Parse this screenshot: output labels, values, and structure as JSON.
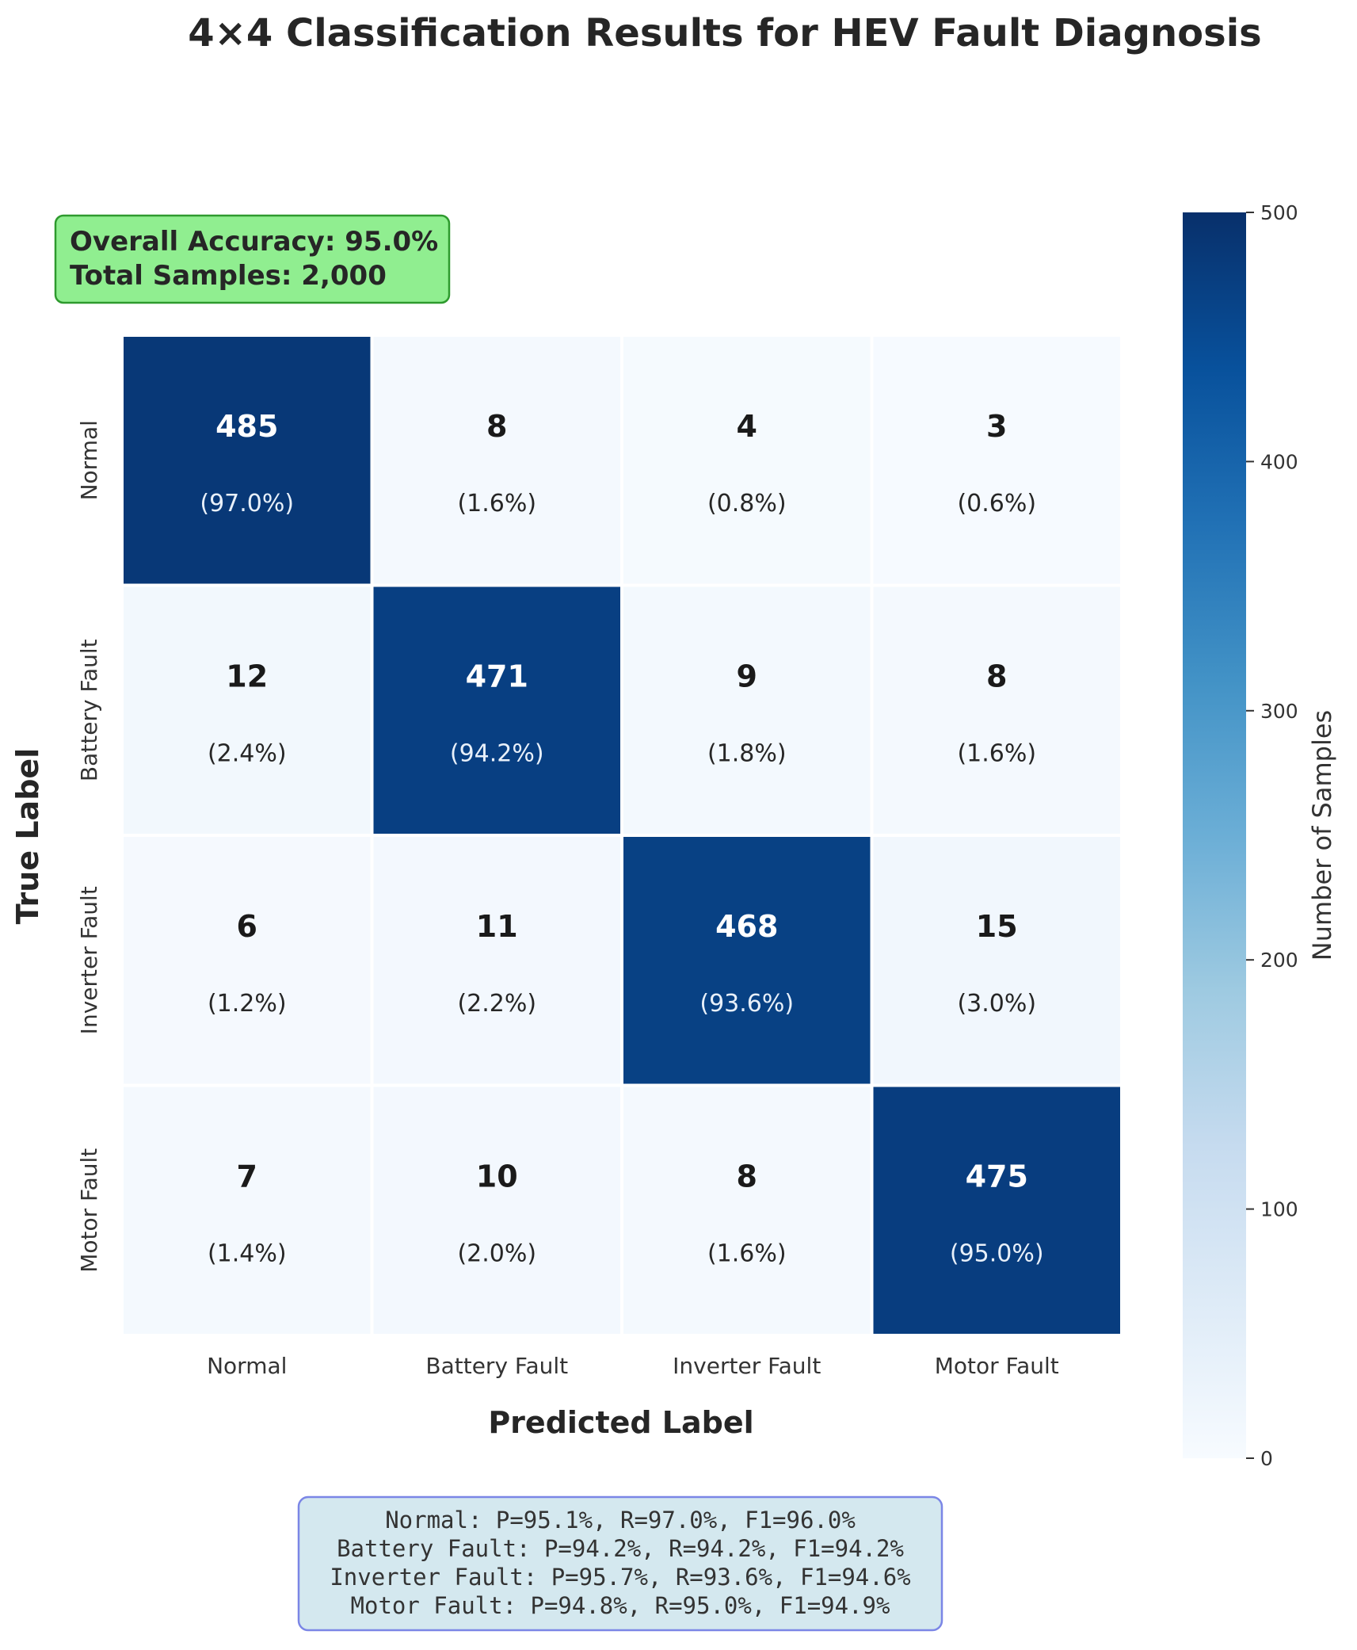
{
  "chart_data": {
    "type": "heatmap",
    "title": "4×4 Classification Results for HEV Fault Diagnosis",
    "xlabel": "Predicted Label",
    "ylabel": "True Label",
    "x_categories": [
      "Normal",
      "Battery Fault",
      "Inverter Fault",
      "Motor Fault"
    ],
    "y_categories": [
      "Normal",
      "Battery Fault",
      "Inverter Fault",
      "Motor Fault"
    ],
    "values": [
      [
        485,
        8,
        4,
        3
      ],
      [
        12,
        471,
        9,
        8
      ],
      [
        6,
        11,
        468,
        15
      ],
      [
        7,
        10,
        8,
        475
      ]
    ],
    "percentages": [
      [
        "(97.0%)",
        "(1.6%)",
        "(0.8%)",
        "(0.6%)"
      ],
      [
        "(2.4%)",
        "(94.2%)",
        "(1.8%)",
        "(1.6%)"
      ],
      [
        "(1.2%)",
        "(2.2%)",
        "(93.6%)",
        "(3.0%)"
      ],
      [
        "(1.4%)",
        "(2.0%)",
        "(1.6%)",
        "(95.0%)"
      ]
    ],
    "colormap": "Blues",
    "colorbar": {
      "label": "Number of Samples",
      "range": [
        0,
        500
      ],
      "ticks": [
        0,
        100,
        200,
        300,
        400,
        500
      ]
    },
    "summary_box": {
      "lines": [
        "Overall Accuracy: 95.0%",
        "Total Samples: 2,000"
      ],
      "fill_color": "#90ee90",
      "border_color": "#2e9a2e"
    },
    "metrics_box": {
      "lines": [
        "Normal: P=95.1%, R=97.0%, F1=96.0%",
        "Battery Fault: P=94.2%, R=94.2%, F1=94.2%",
        "Inverter Fault: P=95.7%, R=93.6%, F1=94.6%",
        "Motor Fault: P=94.8%, R=95.0%, F1=94.9%"
      ],
      "fill_color": "#d4e8ef",
      "border_color": "#7b86e6"
    }
  }
}
